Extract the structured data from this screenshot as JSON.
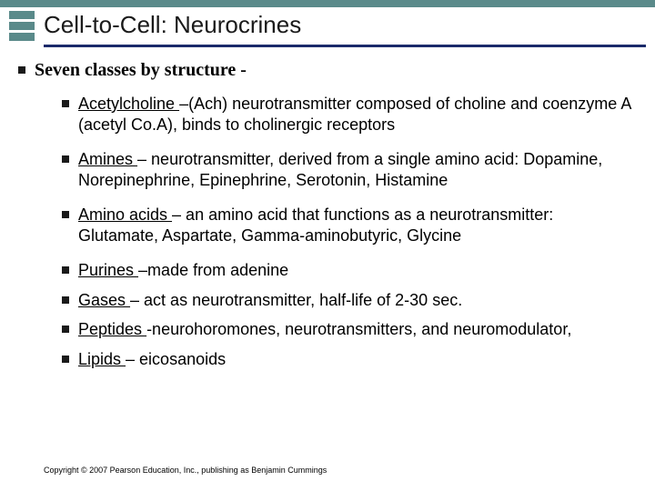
{
  "header": {
    "title": "Cell-to-Cell: Neurocrines",
    "band_color": "#5a8a8a",
    "underline_color": "#1a2a6a"
  },
  "main_bullet": "Seven classes by structure -",
  "items": [
    {
      "term": "Acetylcholine ",
      "rest": "–(Ach) neurotransmitter composed of choline and coenzyme A (acetyl Co.A), binds to cholinergic receptors"
    },
    {
      "term": "Amines ",
      "rest": "– neurotransmitter, derived from a single amino acid: Dopamine, Norepinephrine, Epinephrine, Serotonin, Histamine"
    },
    {
      "term": "Amino acids ",
      "rest": "– an amino acid that functions as a neurotransmitter: Glutamate, Aspartate, Gamma-aminobutyric, Glycine"
    },
    {
      "term": "Purines ",
      "rest": "–made from adenine"
    },
    {
      "term": "Gases ",
      "rest": "– act as neurotransmitter, half-life of 2-30 sec."
    },
    {
      "term": "Peptides ",
      "rest": "-neurohoromones, neurotransmitters, and neuromodulator,"
    },
    {
      "term": "Lipids ",
      "rest": "– eicosanoids"
    }
  ],
  "copyright": "Copyright © 2007 Pearson Education, Inc., publishing as Benjamin Cummings",
  "styles": {
    "title_fontsize": 26,
    "main_fontsize": 20,
    "sub_fontsize": 18,
    "copyright_fontsize": 9,
    "bullet_shape": "square",
    "bullet_color": "#1a1a1a",
    "background": "#ffffff"
  }
}
